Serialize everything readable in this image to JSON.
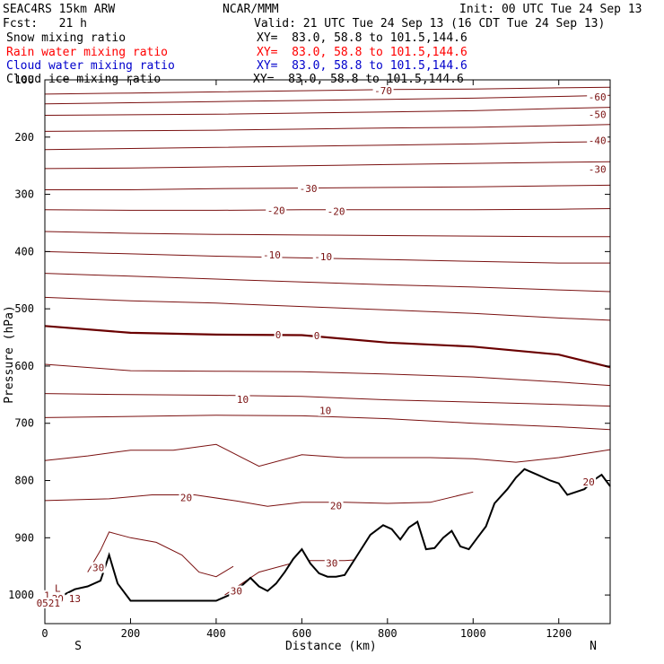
{
  "header": {
    "model": "SEAC4RS 15km ARW",
    "org": "NCAR/MMM",
    "init": "Init: 00 UTC Tue 24 Sep 13",
    "fcst": "Fcst:   21 h",
    "valid": "Valid: 21 UTC Tue 24 Sep 13 (16 CDT Tue 24 Sep 13)",
    "fields": [
      {
        "name": "Snow mixing ratio",
        "xy": "XY=  83.0, 58.8 to 101.5,144.6",
        "color": "#000000"
      },
      {
        "name": "Rain water mixing ratio",
        "xy": "XY=  83.0, 58.8 to 101.5,144.6",
        "color": "#ff0000"
      },
      {
        "name": "Cloud water mixing ratio",
        "xy": "XY=  83.0, 58.8 to 101.5,144.6",
        "color": "#0000cc"
      },
      {
        "name": "Cloud ice mixing ratio",
        "xy": "XY=  83.0, 58.8 to 101.5,144.6",
        "color": "#000000"
      }
    ]
  },
  "colors": {
    "contour": "#7a1010",
    "freezing": "#6a0000",
    "terrain": "#000000"
  },
  "chart_data": {
    "type": "line",
    "xlabel": "Distance (km)",
    "ylabel": "Pressure (hPa)",
    "xlim": [
      0,
      1320
    ],
    "ylim": [
      1050,
      100
    ],
    "x_ticks": [
      0,
      200,
      400,
      600,
      800,
      1000,
      1200
    ],
    "y_ticks": [
      200,
      300,
      400,
      500,
      600,
      700,
      800,
      900,
      1000
    ],
    "y_tick_labels": [
      "200",
      "300",
      "400",
      "500",
      "600",
      "700",
      "800",
      "900",
      "1000"
    ],
    "top_partial_label": "100",
    "start_label": "S",
    "end_label": "N",
    "temperature_contours": [
      {
        "level": -70,
        "x": [
          0,
          200,
          400,
          600,
          800,
          1000,
          1200,
          1320
        ],
        "y": [
          125,
          123,
          121,
          119,
          117,
          116,
          114,
          113
        ]
      },
      {
        "level": -60,
        "x": [
          0,
          200,
          400,
          600,
          800,
          1000,
          1200,
          1320
        ],
        "y": [
          142,
          140,
          138,
          136,
          134,
          132,
          129,
          127
        ]
      },
      {
        "level": -50,
        "x": [
          0,
          200,
          400,
          600,
          800,
          1000,
          1200,
          1320
        ],
        "y": [
          162,
          161,
          160,
          158,
          156,
          154,
          150,
          148
        ]
      },
      {
        "level": -50,
        "x": [
          0,
          200,
          400,
          600,
          800,
          1000,
          1200,
          1320
        ],
        "y": [
          190,
          189,
          188,
          186,
          184,
          183,
          180,
          178
        ]
      },
      {
        "level": -40,
        "x": [
          0,
          200,
          400,
          600,
          800,
          1000,
          1200,
          1320
        ],
        "y": [
          222,
          220,
          218,
          216,
          214,
          212,
          209,
          208
        ]
      },
      {
        "level": -40,
        "x": [
          0,
          200,
          400,
          600,
          800,
          1000,
          1200,
          1320
        ],
        "y": [
          255,
          254,
          252,
          250,
          248,
          246,
          244,
          243
        ]
      },
      {
        "level": -30,
        "x": [
          0,
          200,
          400,
          600,
          800,
          1000,
          1200,
          1320
        ],
        "y": [
          292,
          292,
          290,
          289,
          288,
          287,
          285,
          284
        ]
      },
      {
        "level": -20,
        "x": [
          0,
          200,
          400,
          600,
          800,
          1000,
          1200,
          1320
        ],
        "y": [
          327,
          328,
          328,
          327,
          327,
          327,
          326,
          325
        ]
      },
      {
        "level": -20,
        "x": [
          0,
          200,
          400,
          600,
          800,
          1000,
          1200,
          1320
        ],
        "y": [
          365,
          368,
          370,
          371,
          372,
          373,
          374,
          374
        ]
      },
      {
        "level": -10,
        "x": [
          0,
          200,
          400,
          600,
          800,
          1000,
          1200,
          1320
        ],
        "y": [
          400,
          404,
          408,
          411,
          414,
          417,
          420,
          420
        ]
      },
      {
        "level": -10,
        "x": [
          0,
          200,
          400,
          600,
          800,
          1000,
          1200,
          1320
        ],
        "y": [
          438,
          443,
          448,
          453,
          458,
          462,
          467,
          470
        ]
      },
      {
        "level": 0,
        "x": [
          0,
          200,
          400,
          600,
          800,
          1000,
          1200,
          1320
        ],
        "y": [
          480,
          486,
          490,
          496,
          502,
          508,
          516,
          520
        ]
      },
      {
        "level": 0,
        "x": [
          0,
          200,
          400,
          600,
          800,
          1000,
          1200,
          1320
        ],
        "y": [
          530,
          542,
          545,
          546,
          559,
          566,
          580,
          602
        ],
        "freezing": true
      },
      {
        "level": 10,
        "x": [
          0,
          200,
          400,
          600,
          800,
          1000,
          1200,
          1320
        ],
        "y": [
          597,
          608,
          609,
          610,
          614,
          619,
          628,
          634
        ]
      },
      {
        "level": 10,
        "x": [
          0,
          200,
          400,
          600,
          800,
          1000,
          1200,
          1320
        ],
        "y": [
          648,
          650,
          651,
          653,
          659,
          663,
          667,
          670
        ]
      },
      {
        "level": 10,
        "x": [
          0,
          200,
          400,
          600,
          800,
          1000,
          1200,
          1320
        ],
        "y": [
          690,
          688,
          686,
          687,
          692,
          700,
          706,
          711
        ]
      },
      {
        "level": 20,
        "x": [
          0,
          100,
          200,
          300,
          400,
          500,
          600,
          700,
          800,
          900,
          1000,
          1100,
          1200,
          1320
        ],
        "y": [
          765,
          757,
          747,
          747,
          737,
          775,
          755,
          760,
          760,
          760,
          762,
          768,
          760,
          746
        ]
      },
      {
        "level": 20,
        "x": [
          0,
          150,
          250,
          350,
          450,
          520,
          600,
          700,
          800,
          900,
          1000
        ],
        "y": [
          835,
          832,
          825,
          825,
          836,
          845,
          838,
          838,
          840,
          838,
          820
        ]
      },
      {
        "level": 30,
        "x": [
          100,
          130,
          150,
          200,
          260,
          320,
          360,
          400,
          440
        ],
        "y": [
          960,
          922,
          890,
          900,
          908,
          930,
          960,
          968,
          950
        ]
      },
      {
        "level": 30,
        "x": [
          420,
          500,
          600,
          700,
          800
        ],
        "y": [
          1000,
          960,
          940,
          940,
          935
        ]
      }
    ],
    "contour_labels": [
      {
        "text": "-70",
        "x": 790,
        "y": 119
      },
      {
        "text": "-60",
        "x": 1290,
        "y": 130
      },
      {
        "text": "-50",
        "x": 1290,
        "y": 160
      },
      {
        "text": "-40",
        "x": 1290,
        "y": 206
      },
      {
        "text": "-30",
        "x": 615,
        "y": 290
      },
      {
        "text": "-30",
        "x": 1290,
        "y": 256
      },
      {
        "text": "-20",
        "x": 540,
        "y": 328
      },
      {
        "text": "-20",
        "x": 680,
        "y": 330
      },
      {
        "text": "-10",
        "x": 530,
        "y": 406
      },
      {
        "text": "-10",
        "x": 650,
        "y": 409
      },
      {
        "text": "0",
        "x": 545,
        "y": 545
      },
      {
        "text": "0",
        "x": 635,
        "y": 547
      },
      {
        "text": "10",
        "x": 462,
        "y": 658
      },
      {
        "text": "10",
        "x": 655,
        "y": 678
      },
      {
        "text": "20",
        "x": 330,
        "y": 830
      },
      {
        "text": "20",
        "x": 680,
        "y": 844
      },
      {
        "text": "20",
        "x": 1270,
        "y": 802
      },
      {
        "text": "30",
        "x": 125,
        "y": 952
      },
      {
        "text": "30",
        "x": 447,
        "y": 993
      },
      {
        "text": "30",
        "x": 670,
        "y": 944
      },
      {
        "text": "L",
        "x": 30,
        "y": 988
      },
      {
        "text": "20",
        "x": 30,
        "y": 1006
      },
      {
        "text": "13",
        "x": 70,
        "y": 1006
      },
      {
        "text": "1",
        "x": 5,
        "y": 1001
      },
      {
        "text": "0521",
        "x": 8,
        "y": 1014
      }
    ],
    "terrain": {
      "x": [
        0,
        30,
        70,
        100,
        130,
        150,
        170,
        200,
        250,
        300,
        350,
        400,
        440,
        480,
        500,
        520,
        540,
        560,
        580,
        600,
        620,
        640,
        660,
        680,
        700,
        730,
        760,
        790,
        810,
        830,
        850,
        870,
        890,
        910,
        930,
        950,
        970,
        990,
        1010,
        1030,
        1050,
        1080,
        1100,
        1120,
        1150,
        1180,
        1200,
        1220,
        1240,
        1260,
        1280,
        1300,
        1320
      ],
      "pressure": [
        1010,
        1005,
        990,
        985,
        975,
        930,
        980,
        1010,
        1010,
        1010,
        1010,
        1010,
        997,
        970,
        985,
        993,
        980,
        960,
        937,
        920,
        945,
        962,
        968,
        968,
        965,
        930,
        895,
        878,
        885,
        903,
        882,
        872,
        920,
        918,
        900,
        888,
        915,
        920,
        900,
        880,
        840,
        815,
        795,
        780,
        790,
        800,
        805,
        825,
        820,
        815,
        800,
        790,
        810
      ]
    }
  }
}
